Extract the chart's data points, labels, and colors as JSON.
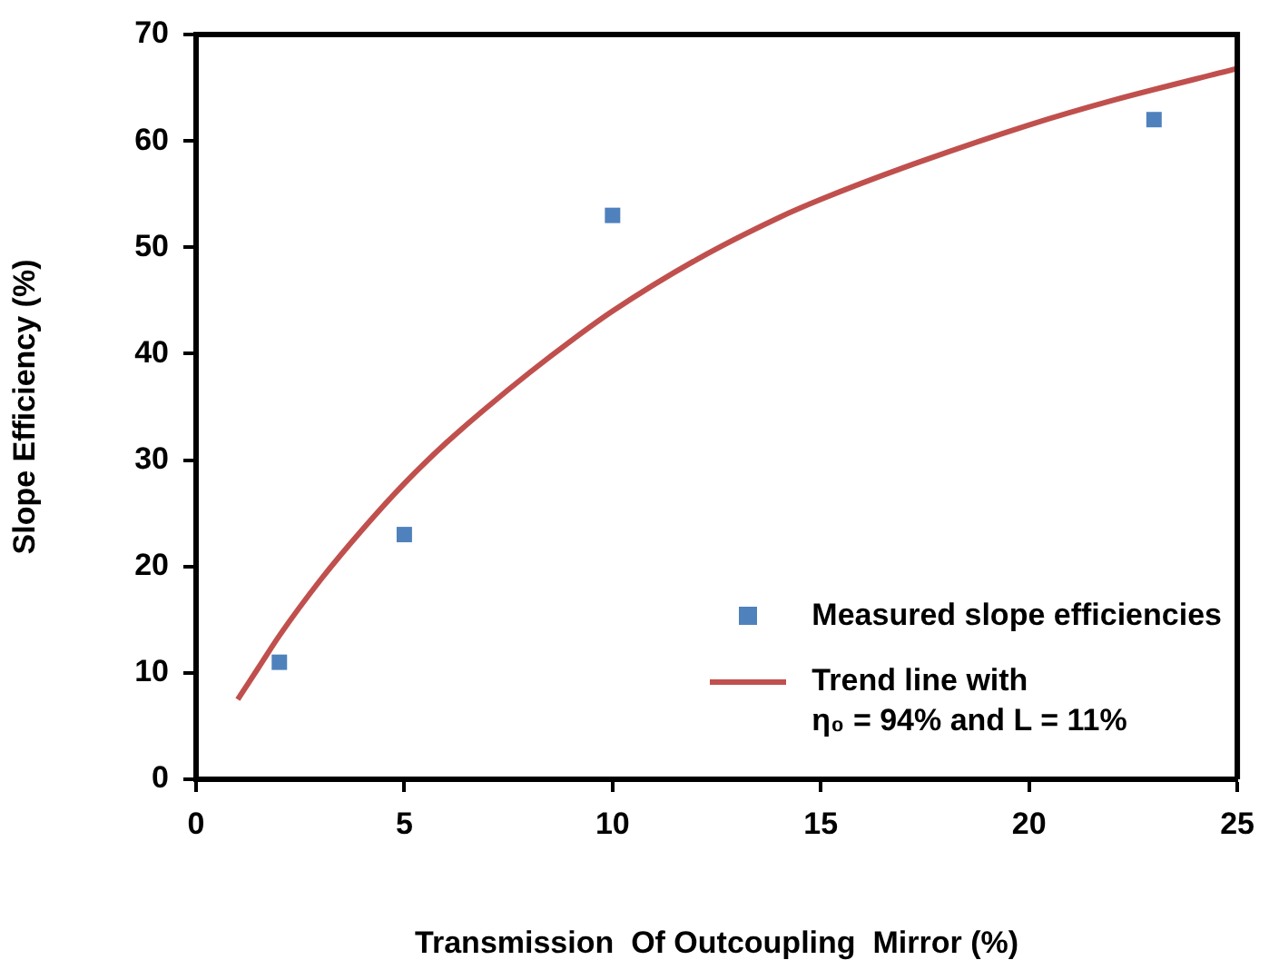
{
  "chart_data": {
    "type": "scatter",
    "xlabel": "Transmission  Of Outcoupling  Mirror (%)",
    "ylabel": "Slope Efficiency (%)",
    "xlim": [
      0,
      25
    ],
    "xticks": [
      0,
      5,
      10,
      15,
      20,
      25
    ],
    "ylim": [
      0,
      70
    ],
    "yticks": [
      0,
      10,
      20,
      30,
      40,
      50,
      60,
      70
    ],
    "grid": false,
    "legend": "bottom right",
    "marker": "square",
    "series": [
      {
        "name": "Measured slope efficiencies",
        "color": "#4f81bd",
        "x": [
          2,
          5,
          10,
          23
        ],
        "values": [
          11,
          23,
          53,
          62
        ]
      },
      {
        "name": "Trend line with\nη₀ = 94% and L = 11%",
        "type": "line",
        "color": "#c0504d",
        "marker": "none",
        "line_style": "solid",
        "x": [
          1,
          1.5,
          2,
          3,
          4,
          5,
          6,
          7,
          8,
          9,
          10,
          12,
          14,
          15,
          17,
          20,
          22,
          25
        ],
        "values": [
          7.5,
          10.5,
          13.5,
          18.8,
          23.5,
          27.8,
          31.6,
          35,
          38.2,
          41.2,
          44,
          48.8,
          52.8,
          54.5,
          57.5,
          61.5,
          63.8,
          66.8
        ]
      }
    ]
  }
}
